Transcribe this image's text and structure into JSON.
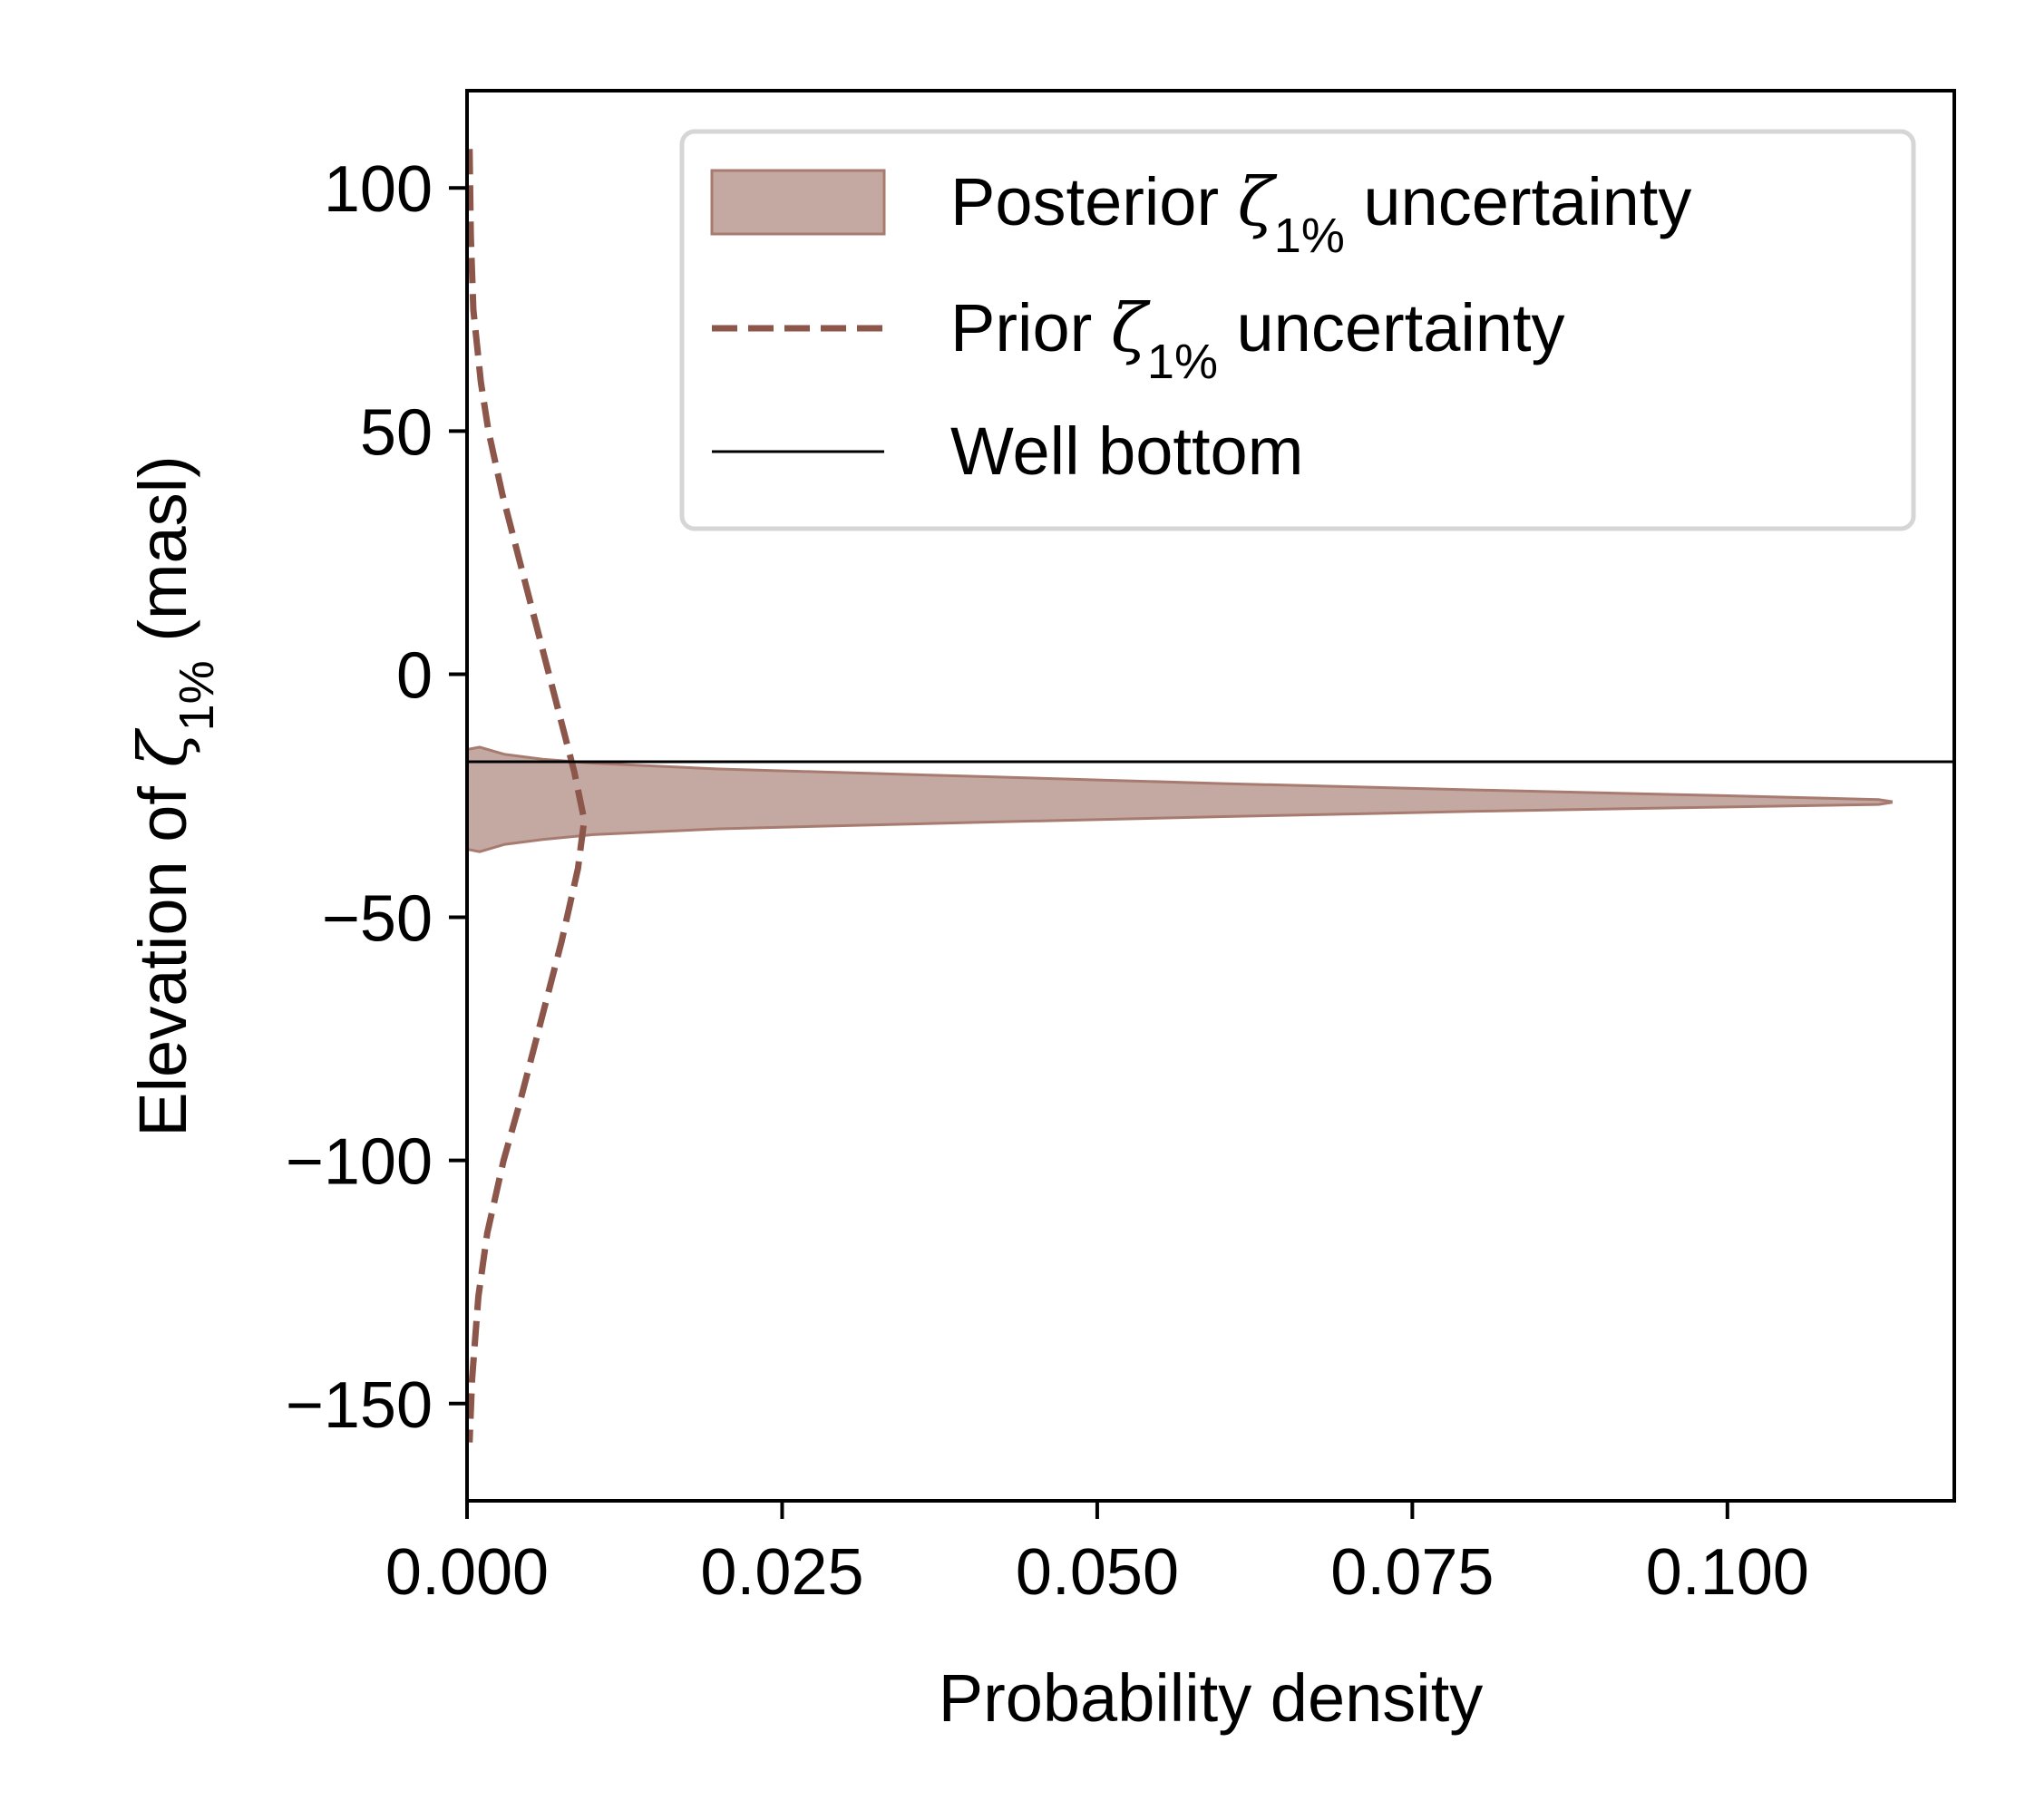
{
  "chart_data": {
    "type": "area",
    "xlabel": "Probability density",
    "ylabel_parts": {
      "before": "Elevation of ",
      "symbol": "ζ",
      "subscript": "1%",
      "after": " (masl)"
    },
    "xlim": [
      0,
      0.118
    ],
    "ylim": [
      -170,
      120
    ],
    "x_ticks": [
      0.0,
      0.025,
      0.05,
      0.075,
      0.1
    ],
    "x_tick_labels": [
      "0.000",
      "0.025",
      "0.050",
      "0.075",
      "0.100"
    ],
    "y_ticks": [
      100,
      50,
      0,
      -50,
      -100,
      -150
    ],
    "y_tick_labels": [
      "100",
      "50",
      "0",
      "−50",
      "−100",
      "−150"
    ],
    "grid": false,
    "legend_position": "top-right",
    "colors": {
      "posterior_fill": "#c4a9a3",
      "posterior_edge": "#a87b70",
      "prior": "#8c564b",
      "well": "#000000"
    },
    "series": [
      {
        "name": "Posterior ζ1% uncertainty",
        "legend": {
          "before": "Posterior ",
          "symbol": "ζ",
          "subscript": "1%",
          "after": " uncertainty"
        },
        "kind": "band",
        "points": [
          {
            "x": 0.0,
            "upper": -15.5,
            "lower": -36.0
          },
          {
            "x": 0.001,
            "upper": -15.0,
            "lower": -36.5
          },
          {
            "x": 0.003,
            "upper": -16.5,
            "lower": -35.0
          },
          {
            "x": 0.006,
            "upper": -17.5,
            "lower": -34.0
          },
          {
            "x": 0.01,
            "upper": -18.3,
            "lower": -33.0
          },
          {
            "x": 0.02,
            "upper": -19.5,
            "lower": -31.8
          },
          {
            "x": 0.04,
            "upper": -21.0,
            "lower": -30.5
          },
          {
            "x": 0.06,
            "upper": -22.5,
            "lower": -29.3
          },
          {
            "x": 0.08,
            "upper": -23.8,
            "lower": -28.2
          },
          {
            "x": 0.1,
            "upper": -25.0,
            "lower": -27.3
          },
          {
            "x": 0.112,
            "upper": -25.8,
            "lower": -26.8
          },
          {
            "x": 0.113,
            "upper": -26.2,
            "lower": -26.4
          }
        ]
      },
      {
        "name": "Prior ζ1% uncertainty",
        "legend": {
          "before": "Prior ",
          "symbol": "ζ",
          "subscript": "1%",
          "after": " uncertainty"
        },
        "kind": "line",
        "style": "dashed",
        "points": [
          {
            "x": 0.0002,
            "y": 108
          },
          {
            "x": 0.0003,
            "y": 90
          },
          {
            "x": 0.0005,
            "y": 75
          },
          {
            "x": 0.0011,
            "y": 60
          },
          {
            "x": 0.0017,
            "y": 50
          },
          {
            "x": 0.0028,
            "y": 37
          },
          {
            "x": 0.0043,
            "y": 22
          },
          {
            "x": 0.0057,
            "y": 8
          },
          {
            "x": 0.0073,
            "y": -8
          },
          {
            "x": 0.0085,
            "y": -20
          },
          {
            "x": 0.0093,
            "y": -30
          },
          {
            "x": 0.0088,
            "y": -40
          },
          {
            "x": 0.0075,
            "y": -55
          },
          {
            "x": 0.0058,
            "y": -72
          },
          {
            "x": 0.0042,
            "y": -88
          },
          {
            "x": 0.0029,
            "y": -100
          },
          {
            "x": 0.0016,
            "y": -115
          },
          {
            "x": 0.0009,
            "y": -128
          },
          {
            "x": 0.0004,
            "y": -145
          },
          {
            "x": 0.0002,
            "y": -158
          }
        ]
      },
      {
        "name": "Well bottom",
        "legend": {
          "before": "Well bottom",
          "symbol": "",
          "subscript": "",
          "after": ""
        },
        "kind": "hline",
        "y": -18
      }
    ]
  }
}
